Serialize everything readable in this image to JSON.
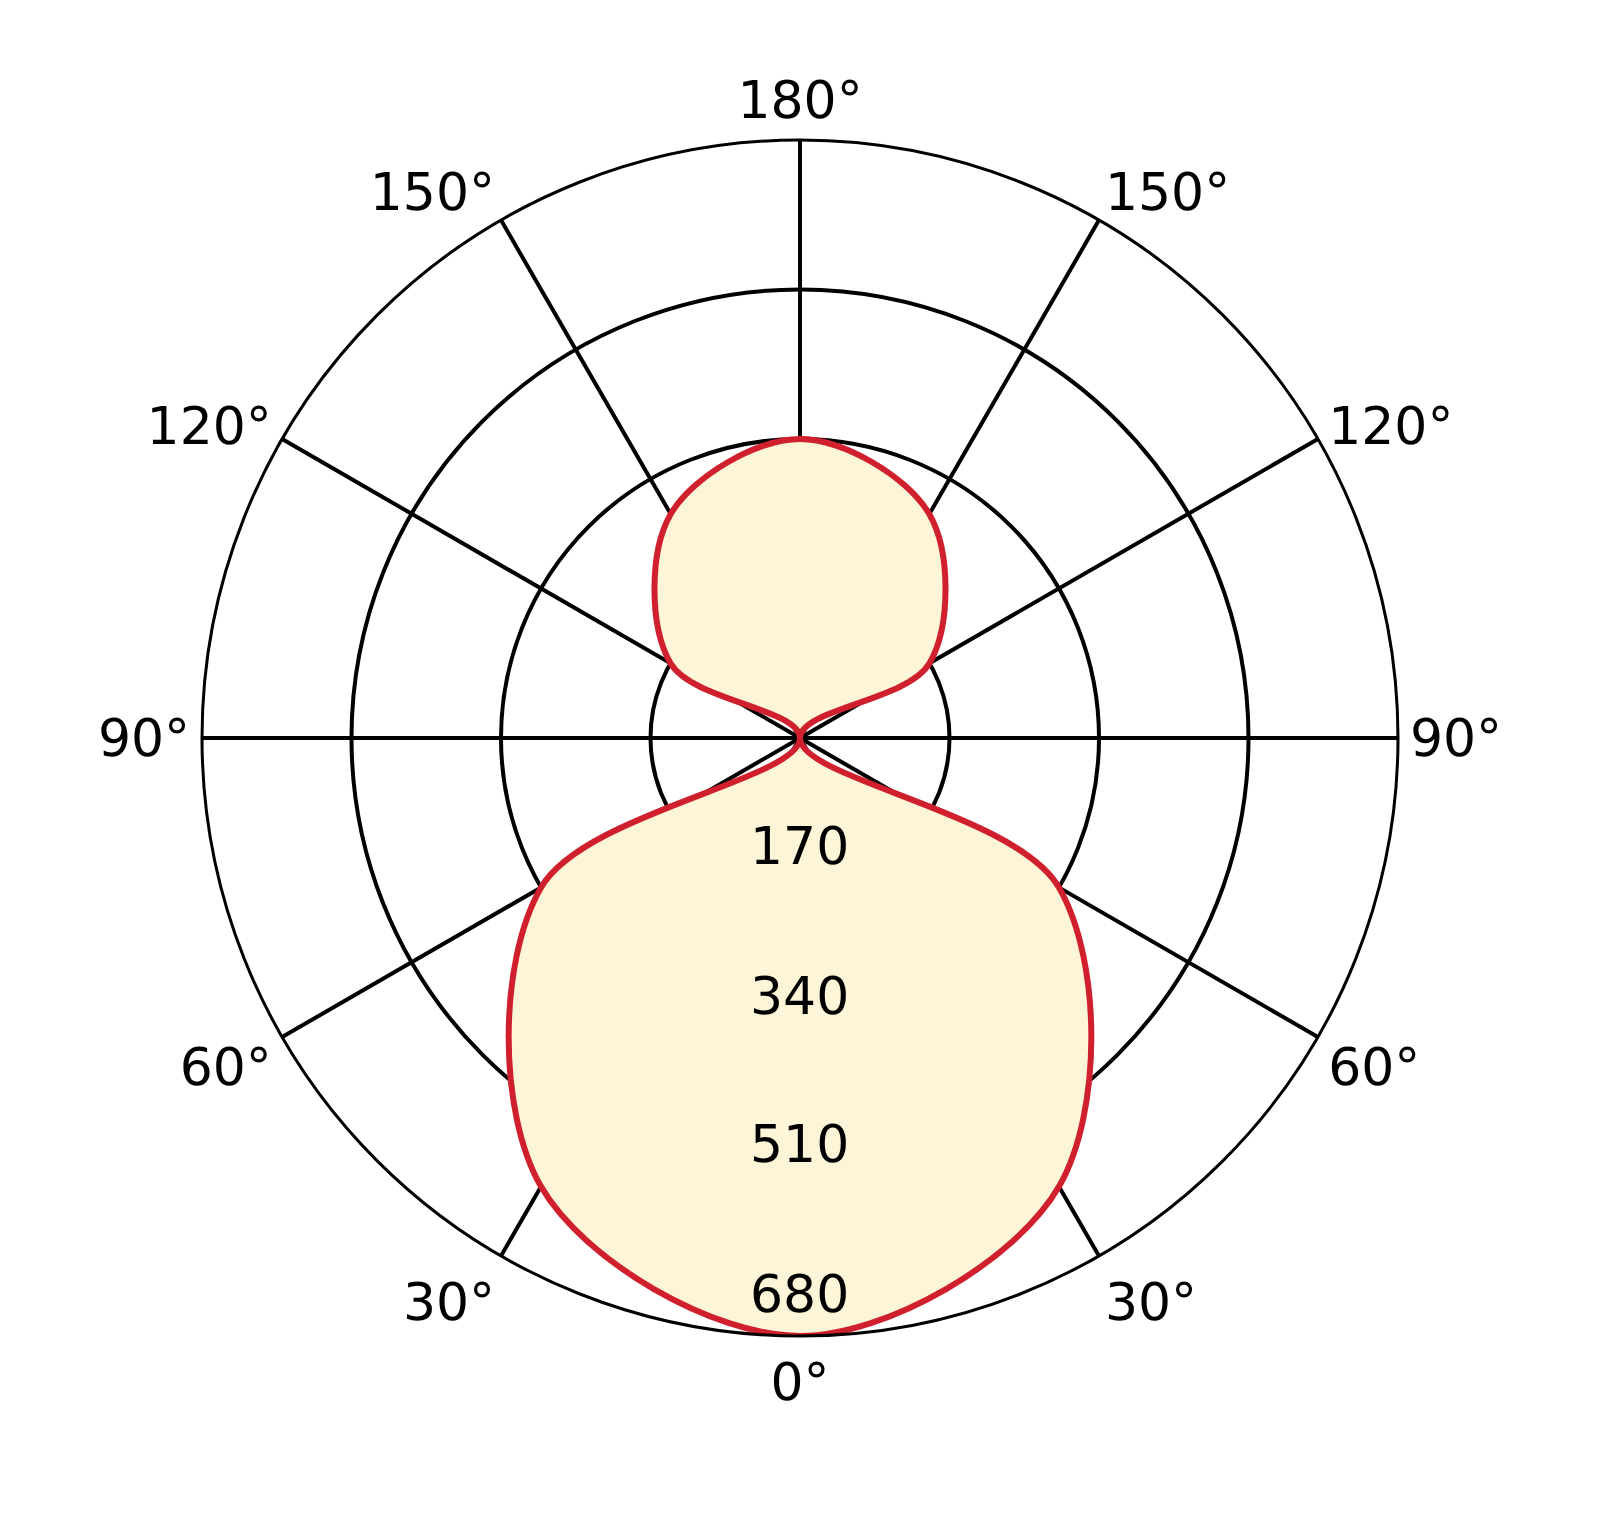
{
  "chart_data": {
    "type": "radar",
    "categories": [
      "180°",
      "150°",
      "120°",
      "90°",
      "60°",
      "30°",
      "0°",
      "30°",
      "60°",
      "90°",
      "120°",
      "150°"
    ],
    "series": [
      {
        "color": "#d0202e",
        "values": [
          340,
          294,
          170,
          0,
          340,
          589,
          680,
          589,
          340,
          0,
          170,
          294
        ]
      }
    ],
    "ylim": [
      0,
      680
    ],
    "yticks": [
      170,
      340,
      510,
      680
    ],
    "grid": true
  }
}
